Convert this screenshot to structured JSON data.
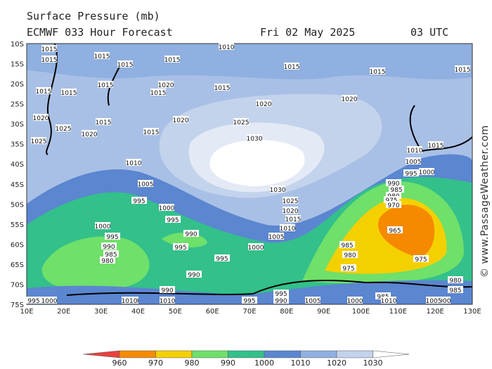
{
  "header": {
    "line1": "Surface Pressure (mb)",
    "model": "ECMWF 033 Hour Forecast",
    "date": "Fri 02 May 2025",
    "time": "03 UTC"
  },
  "lat_labels": [
    "10S",
    "15S",
    "20S",
    "25S",
    "30S",
    "35S",
    "40S",
    "45S",
    "50S",
    "55S",
    "60S",
    "65S",
    "70S",
    "75S"
  ],
  "lon_labels": [
    "10E",
    "20E",
    "30E",
    "40E",
    "50E",
    "60E",
    "70E",
    "80E",
    "90E",
    "100E",
    "110E",
    "120E",
    "130E"
  ],
  "colorbar": {
    "ticks": [
      960,
      970,
      980,
      990,
      1000,
      1010,
      1020,
      1030
    ],
    "colors": [
      "#e8413c",
      "#f58a00",
      "#f5d000",
      "#6fe06a",
      "#33c08a",
      "#5b86d0",
      "#8fb0e0",
      "#c3d3ec",
      "#ffffff"
    ]
  },
  "isobar_labels": [
    "1015",
    "1015",
    "1015",
    "1015",
    "1015",
    "1010",
    "1015",
    "1015",
    "1015",
    "1015",
    "1015",
    "1015",
    "1020",
    "1015",
    "1015",
    "1020",
    "1020",
    "1020",
    "1025",
    "1020",
    "1015",
    "1015",
    "1020",
    "1025",
    "1030",
    "1025",
    "1010",
    "1010",
    "1015",
    "1005",
    "995",
    "1000",
    "1005",
    "1030",
    "1025",
    "1020",
    "1015",
    "1010",
    "1005",
    "995",
    "1000",
    "990",
    "985",
    "980",
    "975",
    "970",
    "995",
    "990",
    "1000",
    "995",
    "990",
    "985",
    "980",
    "995",
    "995",
    "1000",
    "985",
    "980",
    "975",
    "965",
    "975",
    "990",
    "980",
    "985",
    "990",
    "1000",
    "995",
    "985",
    "990",
    "1000",
    "1005",
    "1010",
    "1000",
    "1005",
    "1010",
    "1010",
    "995",
    "995",
    "1000"
  ],
  "watermark": "© www.PassageWeather.com"
}
